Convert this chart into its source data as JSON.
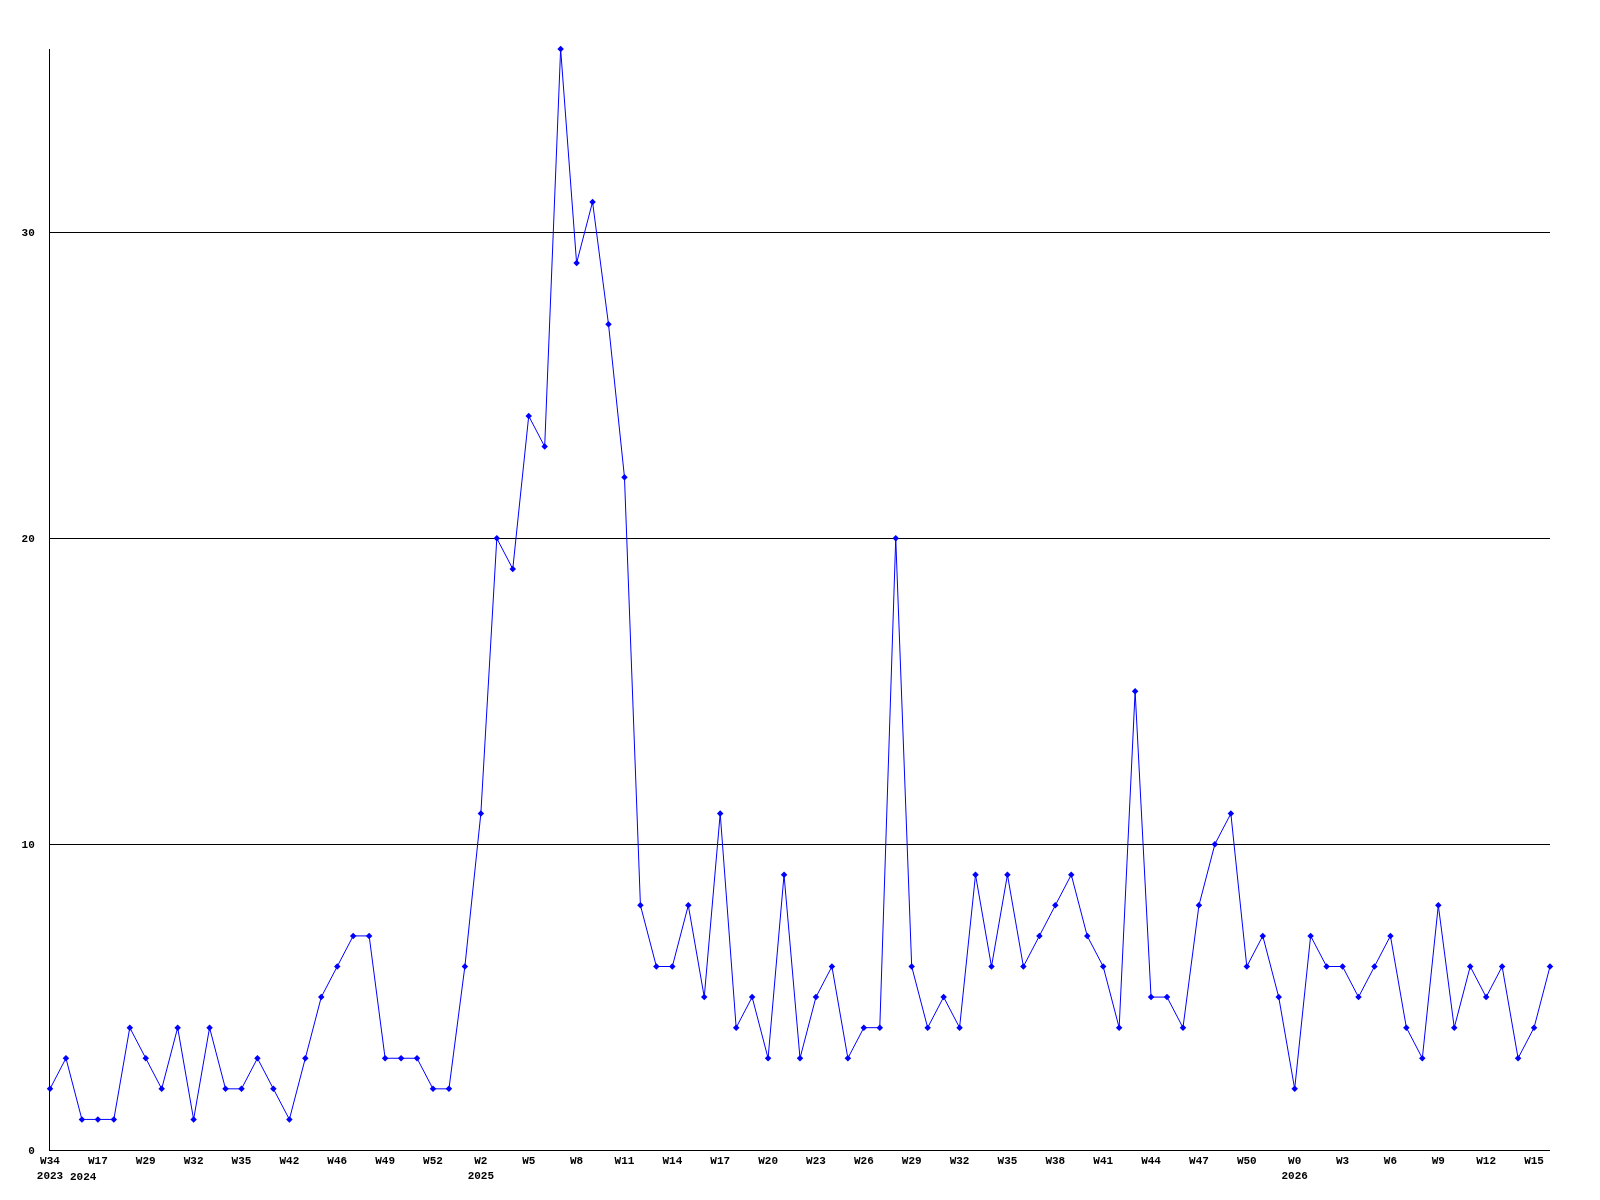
{
  "chart_data": {
    "type": "line",
    "categories": [
      "W34\n2023",
      null,
      null,
      "W17",
      null,
      null,
      "W29",
      null,
      null,
      "W32",
      null,
      null,
      "W35",
      null,
      null,
      "W42",
      null,
      null,
      "W46",
      null,
      null,
      "W49",
      null,
      null,
      "W52",
      null,
      null,
      "W2\n2025",
      null,
      null,
      "W5",
      null,
      null,
      "W8",
      null,
      null,
      "W11",
      null,
      null,
      "W14",
      null,
      null,
      "W17",
      null,
      null,
      "W20",
      null,
      null,
      "W23",
      null,
      null,
      "W26",
      null,
      null,
      "W29",
      null,
      null,
      "W32",
      null,
      null,
      "W35",
      null,
      null,
      "W38",
      null,
      null,
      "W41",
      null,
      null,
      "W44",
      null,
      null,
      "W47",
      null,
      null,
      "W50",
      null,
      null,
      "W0\n2026",
      null,
      null,
      "W3",
      null,
      null,
      "W6",
      null,
      null,
      "W9",
      null,
      null,
      "W12",
      null,
      null,
      "W15",
      null
    ],
    "series": [
      {
        "color": "#0000ff",
        "values": [
          2,
          3,
          1,
          1,
          1,
          4,
          3,
          2,
          4,
          1,
          4,
          2,
          2,
          3,
          2,
          1,
          3,
          5,
          6,
          7,
          7,
          3,
          3,
          3,
          2,
          2,
          6,
          11,
          20,
          19,
          24,
          23,
          36,
          29,
          31,
          27,
          22,
          8,
          6,
          6,
          8,
          5,
          11,
          4,
          5,
          3,
          9,
          3,
          5,
          6,
          3,
          4,
          4,
          20,
          6,
          4,
          5,
          4,
          9,
          6,
          9,
          6,
          7,
          8,
          9,
          7,
          6,
          4,
          15,
          5,
          5,
          4,
          8,
          10,
          11,
          6,
          7,
          5,
          2,
          7,
          6,
          6,
          5,
          6,
          7,
          4,
          3,
          8,
          4,
          6,
          5,
          6,
          3,
          4,
          6
        ]
      }
    ],
    "annotations": [
      "2024"
    ],
    "ylim": [
      0,
      36
    ],
    "yticks": [
      0,
      10,
      20,
      30
    ],
    "grid": "y",
    "marker": "diamond",
    "line_style": "solid"
  }
}
